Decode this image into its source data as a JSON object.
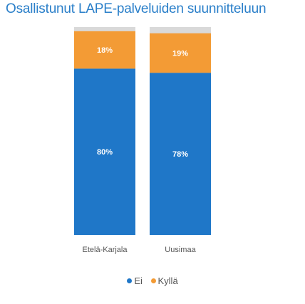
{
  "chart_data": {
    "type": "bar",
    "stacked": true,
    "title": "Osallistunut LAPE-palveluiden suunnitteluun",
    "categories": [
      "Etelä-Karjala",
      "Uusimaa"
    ],
    "series": [
      {
        "name": "Ei",
        "values": [
          80,
          78
        ],
        "labels": [
          "80%",
          "78%"
        ],
        "color": "#1f77c8"
      },
      {
        "name": "Kyllä",
        "values": [
          18,
          19
        ],
        "labels": [
          "18%",
          "19%"
        ],
        "color": "#f39b35"
      }
    ],
    "remainder_color": "#d9d9d9",
    "ylim": [
      0,
      100
    ],
    "legend_position": "bottom",
    "grid": false
  }
}
